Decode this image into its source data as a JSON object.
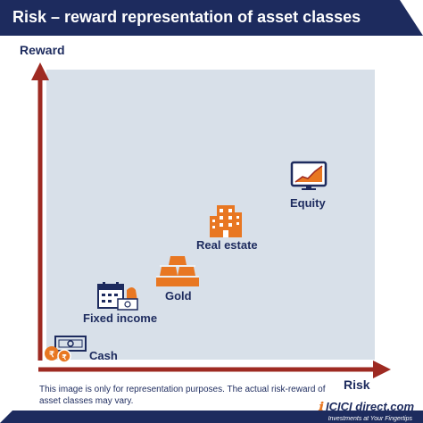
{
  "title": "Risk – reward representation of asset classes",
  "axes": {
    "y_label": "Reward",
    "x_label": "Risk"
  },
  "items": [
    {
      "label": "Cash",
      "icon": "cash-icon"
    },
    {
      "label": "Fixed income",
      "icon": "fixed-income-icon"
    },
    {
      "label": "Gold",
      "icon": "gold-bars-icon"
    },
    {
      "label": "Real estate",
      "icon": "building-icon"
    },
    {
      "label": "Equity",
      "icon": "monitor-chart-icon"
    }
  ],
  "note": "This image is only for representation purposes. The actual risk-reward of asset classes may vary.",
  "brand": {
    "logo": "ICICI direct.com",
    "tagline": "Investments at Your Fingertips"
  },
  "colors": {
    "navy": "#1d2b5e",
    "axis_red": "#9e2a22",
    "orange": "#e87722",
    "plot_bg": "#d8e0e9"
  }
}
